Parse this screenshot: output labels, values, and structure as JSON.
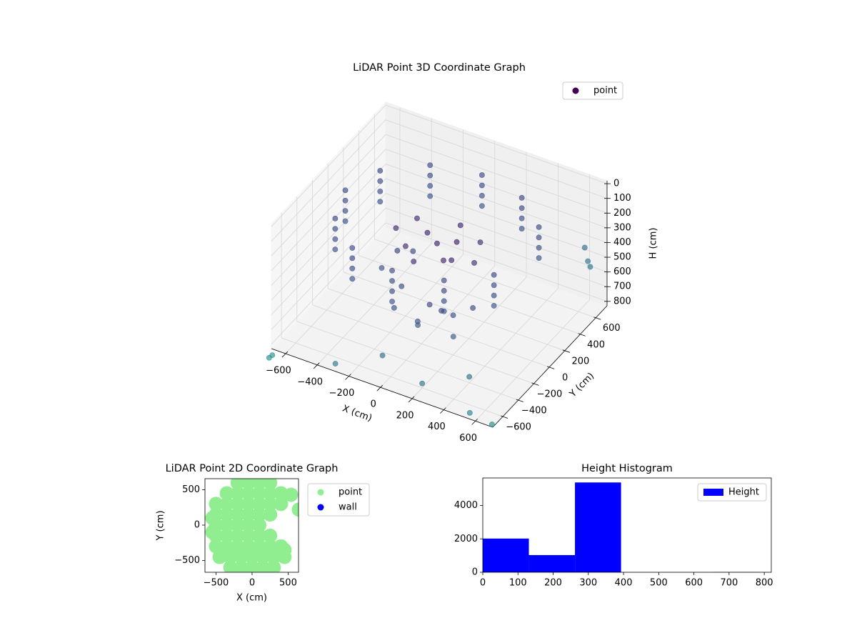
{
  "chart_data": [
    {
      "type": "scatter3d",
      "title": "LiDAR Point 3D Coordinate Graph",
      "xlabel": "X (cm)",
      "ylabel": "Y (cm)",
      "zlabel": "H (cm)",
      "xlim": [
        -690,
        710
      ],
      "ylim": [
        -730,
        745
      ],
      "zlim": [
        -20,
        830
      ],
      "z_inverted": true,
      "xticks": [
        {
          "value": -600,
          "label": "−600"
        },
        {
          "value": -400,
          "label": "−400"
        },
        {
          "value": -200,
          "label": "−200"
        },
        0,
        200,
        400,
        600
      ],
      "yticks": [
        {
          "value": -600,
          "label": "−600"
        },
        {
          "value": -400,
          "label": "−400"
        },
        {
          "value": -200,
          "label": "−200"
        },
        0,
        200,
        400,
        600
      ],
      "zticks": [
        0,
        100,
        200,
        300,
        400,
        500,
        600,
        700,
        800
      ],
      "grid": true,
      "legend": "upper right",
      "colormap": [
        "#440154",
        "#3b528b",
        "#21918c"
      ],
      "series": [
        {
          "name": "point",
          "color": "#440154",
          "x": [
            502,
            290,
            0,
            -290,
            -502,
            -580,
            -502,
            -290,
            0,
            290,
            502,
            502,
            290,
            0,
            -290,
            -502,
            -580,
            -502,
            -290,
            0,
            290,
            502,
            502,
            290,
            0,
            -290,
            -502,
            -580,
            -502,
            -290,
            0,
            290,
            502,
            502,
            290,
            0,
            -290,
            -502,
            -580,
            -502,
            -290,
            0,
            290,
            502,
            0,
            100,
            -100,
            150,
            -150,
            50,
            -50,
            200,
            -200,
            250,
            -250,
            80,
            -300,
            -250,
            -350,
            -200,
            100,
            150,
            200,
            50,
            250,
            0,
            300,
            -100,
            640,
            650,
            660,
            -300,
            -100,
            200,
            400,
            550,
            700,
            -650,
            -660
          ],
          "y": [
            290,
            502,
            580,
            502,
            290,
            0,
            -290,
            -502,
            -580,
            -502,
            -290,
            290,
            502,
            580,
            502,
            290,
            0,
            -290,
            -502,
            -580,
            -502,
            -290,
            290,
            502,
            580,
            502,
            290,
            0,
            -290,
            -502,
            -580,
            -502,
            -290,
            290,
            502,
            580,
            502,
            290,
            0,
            -290,
            -502,
            -580,
            -502,
            -290,
            0,
            50,
            80,
            -120,
            -100,
            200,
            -200,
            150,
            150,
            -30,
            -20,
            -80,
            100,
            200,
            0,
            -50,
            -300,
            -250,
            -200,
            -350,
            -300,
            -250,
            -150,
            -350,
            600,
            620,
            630,
            -700,
            -500,
            -600,
            -400,
            -700,
            -720,
            -800,
            -820
          ],
          "z": [
            120,
            120,
            120,
            120,
            120,
            120,
            120,
            120,
            120,
            120,
            120,
            190,
            190,
            190,
            190,
            190,
            190,
            190,
            190,
            190,
            190,
            190,
            260,
            260,
            260,
            260,
            260,
            260,
            260,
            260,
            260,
            260,
            260,
            330,
            330,
            330,
            330,
            330,
            330,
            330,
            330,
            330,
            330,
            330,
            260,
            240,
            270,
            250,
            280,
            230,
            290,
            260,
            250,
            280,
            240,
            300,
            480,
            520,
            560,
            600,
            470,
            520,
            560,
            600,
            630,
            650,
            500,
            540,
            380,
            480,
            520,
            800,
            780,
            800,
            790,
            810,
            820,
            820,
            830
          ]
        }
      ]
    },
    {
      "type": "scatter",
      "title": "LiDAR Point 2D Coordinate Graph",
      "xlabel": "X (cm)",
      "ylabel": "Y (cm)",
      "xlim": [
        -653,
        644
      ],
      "ylim": [
        -667,
        657
      ],
      "xticks": [
        {
          "value": -500,
          "label": "−500"
        },
        0,
        500
      ],
      "yticks": [
        {
          "value": -500,
          "label": "−500"
        },
        0,
        500
      ],
      "legend": "outside right",
      "series": [
        {
          "name": "point",
          "color": "#90ee90",
          "x": [
            -200,
            -50,
            100,
            250,
            -350,
            -200,
            -50,
            100,
            250,
            400,
            -500,
            -350,
            -200,
            -50,
            100,
            250,
            400,
            -500,
            -350,
            -200,
            -50,
            100,
            250,
            -500,
            -350,
            -200,
            -50,
            100,
            -500,
            -350,
            -200,
            -50,
            100,
            250,
            -500,
            -350,
            -200,
            -50,
            100,
            250,
            400,
            -450,
            -300,
            -150,
            0,
            150,
            300,
            450,
            -300,
            -150,
            0,
            150,
            300,
            540,
            650,
            450,
            -550,
            -550
          ],
          "y": [
            600,
            600,
            600,
            600,
            450,
            450,
            450,
            450,
            450,
            450,
            300,
            300,
            300,
            300,
            300,
            300,
            300,
            150,
            150,
            150,
            150,
            150,
            150,
            0,
            0,
            0,
            0,
            0,
            -150,
            -150,
            -150,
            -150,
            -150,
            -150,
            -300,
            -300,
            -300,
            -300,
            -300,
            -300,
            -300,
            -450,
            -450,
            -450,
            -450,
            -450,
            -450,
            -450,
            -600,
            -600,
            -600,
            -600,
            -600,
            430,
            220,
            -350,
            -100,
            100
          ]
        },
        {
          "name": "wall",
          "color": "#0000ff",
          "x": [],
          "y": []
        }
      ]
    },
    {
      "type": "histogram",
      "title": "Height Histogram",
      "name": "Height",
      "color": "#0000ff",
      "bins": [
        0,
        131,
        262,
        393,
        524,
        655,
        786
      ],
      "counts": [
        2020,
        1030,
        5380,
        0,
        0,
        10
      ],
      "xlim": [
        0,
        820
      ],
      "ylim": [
        0,
        5650
      ],
      "xticks": [
        0,
        100,
        200,
        300,
        400,
        500,
        600,
        700,
        800
      ],
      "yticks": [
        0,
        2000,
        4000
      ],
      "legend": "upper right"
    }
  ]
}
